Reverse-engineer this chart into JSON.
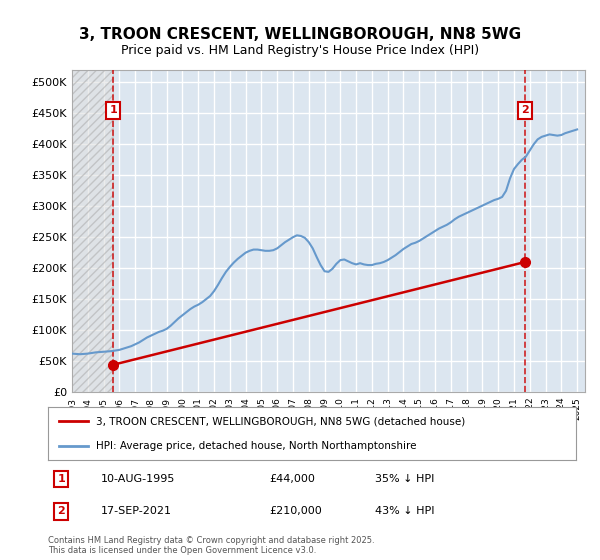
{
  "title": "3, TROON CRESCENT, WELLINGBOROUGH, NN8 5WG",
  "subtitle": "Price paid vs. HM Land Registry's House Price Index (HPI)",
  "ylabel_ticks": [
    "£0",
    "£50K",
    "£100K",
    "£150K",
    "£200K",
    "£250K",
    "£300K",
    "£350K",
    "£400K",
    "£450K",
    "£500K"
  ],
  "ytick_values": [
    0,
    50000,
    100000,
    150000,
    200000,
    250000,
    300000,
    350000,
    400000,
    450000,
    500000
  ],
  "ylim": [
    0,
    520000
  ],
  "xlim_start": 1993.0,
  "xlim_end": 2025.5,
  "bg_color": "#ffffff",
  "plot_bg_color": "#dce6f0",
  "grid_color": "#ffffff",
  "red_line_color": "#cc0000",
  "blue_line_color": "#6699cc",
  "marker_color": "#cc0000",
  "annotation_box_color": "#cc0000",
  "legend_red_label": "3, TROON CRESCENT, WELLINGBOROUGH, NN8 5WG (detached house)",
  "legend_blue_label": "HPI: Average price, detached house, North Northamptonshire",
  "point1_date": "10-AUG-1995",
  "point1_price": "£44,000",
  "point1_hpi": "35% ↓ HPI",
  "point1_x": 1995.61,
  "point1_y": 44000,
  "point2_date": "17-SEP-2021",
  "point2_price": "£210,000",
  "point2_hpi": "43% ↓ HPI",
  "point2_x": 2021.71,
  "point2_y": 210000,
  "footer": "Contains HM Land Registry data © Crown copyright and database right 2025.\nThis data is licensed under the Open Government Licence v3.0.",
  "hpi_data_x": [
    1993.0,
    1993.25,
    1993.5,
    1993.75,
    1994.0,
    1994.25,
    1994.5,
    1994.75,
    1995.0,
    1995.25,
    1995.5,
    1995.75,
    1996.0,
    1996.25,
    1996.5,
    1996.75,
    1997.0,
    1997.25,
    1997.5,
    1997.75,
    1998.0,
    1998.25,
    1998.5,
    1998.75,
    1999.0,
    1999.25,
    1999.5,
    1999.75,
    2000.0,
    2000.25,
    2000.5,
    2000.75,
    2001.0,
    2001.25,
    2001.5,
    2001.75,
    2002.0,
    2002.25,
    2002.5,
    2002.75,
    2003.0,
    2003.25,
    2003.5,
    2003.75,
    2004.0,
    2004.25,
    2004.5,
    2004.75,
    2005.0,
    2005.25,
    2005.5,
    2005.75,
    2006.0,
    2006.25,
    2006.5,
    2006.75,
    2007.0,
    2007.25,
    2007.5,
    2007.75,
    2008.0,
    2008.25,
    2008.5,
    2008.75,
    2009.0,
    2009.25,
    2009.5,
    2009.75,
    2010.0,
    2010.25,
    2010.5,
    2010.75,
    2011.0,
    2011.25,
    2011.5,
    2011.75,
    2012.0,
    2012.25,
    2012.5,
    2012.75,
    2013.0,
    2013.25,
    2013.5,
    2013.75,
    2014.0,
    2014.25,
    2014.5,
    2014.75,
    2015.0,
    2015.25,
    2015.5,
    2015.75,
    2016.0,
    2016.25,
    2016.5,
    2016.75,
    2017.0,
    2017.25,
    2017.5,
    2017.75,
    2018.0,
    2018.25,
    2018.5,
    2018.75,
    2019.0,
    2019.25,
    2019.5,
    2019.75,
    2020.0,
    2020.25,
    2020.5,
    2020.75,
    2021.0,
    2021.25,
    2021.5,
    2021.75,
    2022.0,
    2022.25,
    2022.5,
    2022.75,
    2023.0,
    2023.25,
    2023.5,
    2023.75,
    2024.0,
    2024.25,
    2024.5,
    2024.75,
    2025.0
  ],
  "hpi_data_y": [
    62000,
    61500,
    61000,
    61500,
    62000,
    63000,
    64000,
    64500,
    65000,
    65500,
    66000,
    67000,
    68000,
    70000,
    72000,
    74000,
    77000,
    80000,
    84000,
    88000,
    91000,
    94000,
    97000,
    99000,
    102000,
    107000,
    113000,
    119000,
    124000,
    129000,
    134000,
    138000,
    141000,
    145000,
    150000,
    155000,
    163000,
    173000,
    184000,
    194000,
    202000,
    209000,
    215000,
    220000,
    225000,
    228000,
    230000,
    230000,
    229000,
    228000,
    228000,
    229000,
    232000,
    237000,
    242000,
    246000,
    250000,
    253000,
    252000,
    249000,
    242000,
    232000,
    218000,
    205000,
    195000,
    194000,
    199000,
    207000,
    213000,
    214000,
    211000,
    208000,
    206000,
    208000,
    206000,
    205000,
    205000,
    207000,
    208000,
    210000,
    213000,
    217000,
    221000,
    226000,
    231000,
    235000,
    239000,
    241000,
    244000,
    248000,
    252000,
    256000,
    260000,
    264000,
    267000,
    270000,
    274000,
    279000,
    283000,
    286000,
    289000,
    292000,
    295000,
    298000,
    301000,
    304000,
    307000,
    310000,
    312000,
    315000,
    325000,
    345000,
    360000,
    368000,
    375000,
    380000,
    390000,
    400000,
    408000,
    412000,
    414000,
    416000,
    415000,
    414000,
    415000,
    418000,
    420000,
    422000,
    424000
  ],
  "price_data_x": [
    1995.61,
    2021.71
  ],
  "price_data_y": [
    44000,
    210000
  ]
}
